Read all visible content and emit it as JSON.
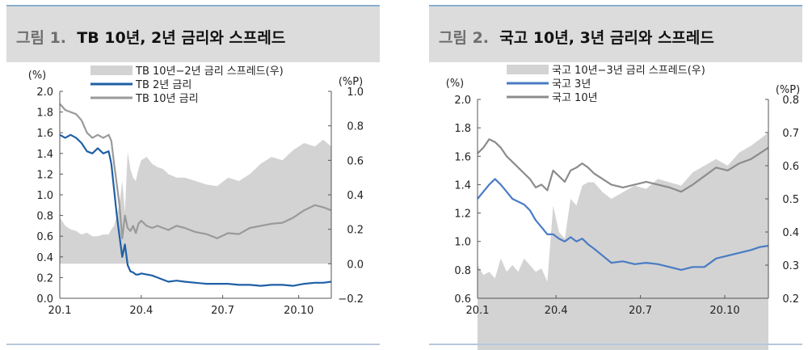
{
  "charts": [
    {
      "fig_label": "그림 1.",
      "title": "TB 10년, 2년 금리와 스프레드",
      "left_unit": "(%)",
      "right_unit": "(%P)",
      "legend": [
        "TB 10년−2년 금리 스프레드(우)",
        "TB 2년 금리",
        "TB 10년 금리"
      ]
    },
    {
      "fig_label": "그림 2.",
      "title": "국고 10년, 3년 금리와 스프레드",
      "left_unit": "(%)",
      "right_unit": "(%P)",
      "legend": [
        "국고 10년−3년 금리 스프레드(우)",
        "국고 3년",
        "국고 10년"
      ]
    }
  ],
  "chart_data": [
    {
      "type": "line",
      "title": "TB 10년, 2년 금리와 스프레드",
      "x_ticks": [
        "20.1",
        "20.4",
        "20.7",
        "20.10"
      ],
      "y_left": {
        "unit": "(%)",
        "min": 0.0,
        "max": 2.0,
        "step": 0.2,
        "ticks": [
          "0.0",
          "0.2",
          "0.4",
          "0.6",
          "0.8",
          "1.0",
          "1.2",
          "1.4",
          "1.6",
          "1.8",
          "2.0"
        ]
      },
      "y_right": {
        "unit": "(%P)",
        "min": -0.2,
        "max": 1.0,
        "step": 0.2,
        "ticks": [
          "−0.2",
          "0.0",
          "0.2",
          "0.4",
          "0.6",
          "0.8",
          "1.0"
        ]
      },
      "x": [
        0,
        0.02,
        0.04,
        0.06,
        0.08,
        0.1,
        0.12,
        0.14,
        0.16,
        0.18,
        0.19,
        0.2,
        0.21,
        0.22,
        0.23,
        0.24,
        0.25,
        0.26,
        0.27,
        0.28,
        0.29,
        0.3,
        0.32,
        0.34,
        0.36,
        0.38,
        0.4,
        0.43,
        0.46,
        0.5,
        0.54,
        0.58,
        0.62,
        0.66,
        0.7,
        0.74,
        0.78,
        0.82,
        0.86,
        0.9,
        0.94,
        0.97,
        1.0
      ],
      "series": [
        {
          "name": "TB 10년−2년 금리 스프레드(우)",
          "kind": "area",
          "axis": "right",
          "color": "#d3d3d3",
          "values": [
            0.27,
            0.22,
            0.2,
            0.19,
            0.17,
            0.18,
            0.16,
            0.16,
            0.17,
            0.17,
            0.2,
            0.22,
            0.28,
            0.35,
            0.48,
            0.3,
            0.65,
            0.55,
            0.5,
            0.48,
            0.55,
            0.6,
            0.62,
            0.58,
            0.56,
            0.55,
            0.52,
            0.5,
            0.5,
            0.48,
            0.46,
            0.45,
            0.5,
            0.48,
            0.52,
            0.58,
            0.62,
            0.6,
            0.66,
            0.7,
            0.68,
            0.72,
            0.68
          ]
        },
        {
          "name": "TB 2년 금리",
          "kind": "line",
          "axis": "left",
          "color": "#1f5fa6",
          "values": [
            1.58,
            1.55,
            1.58,
            1.55,
            1.5,
            1.42,
            1.4,
            1.45,
            1.4,
            1.42,
            1.3,
            1.05,
            0.8,
            0.6,
            0.4,
            0.52,
            0.32,
            0.26,
            0.25,
            0.23,
            0.23,
            0.24,
            0.23,
            0.22,
            0.2,
            0.18,
            0.16,
            0.17,
            0.16,
            0.15,
            0.14,
            0.14,
            0.14,
            0.13,
            0.13,
            0.12,
            0.13,
            0.13,
            0.12,
            0.14,
            0.15,
            0.15,
            0.16
          ]
        },
        {
          "name": "TB 10년 금리",
          "kind": "line",
          "axis": "left",
          "color": "#9a9a9a",
          "values": [
            1.88,
            1.82,
            1.8,
            1.78,
            1.72,
            1.6,
            1.55,
            1.58,
            1.55,
            1.58,
            1.52,
            1.3,
            1.1,
            0.9,
            0.58,
            0.8,
            0.68,
            0.65,
            0.7,
            0.63,
            0.72,
            0.75,
            0.7,
            0.68,
            0.7,
            0.68,
            0.66,
            0.7,
            0.68,
            0.64,
            0.62,
            0.58,
            0.63,
            0.62,
            0.68,
            0.7,
            0.72,
            0.73,
            0.78,
            0.85,
            0.9,
            0.88,
            0.85
          ]
        }
      ]
    },
    {
      "type": "line",
      "title": "국고 10년, 3년 금리와 스프레드",
      "x_ticks": [
        "20.1",
        "20.4",
        "20.7",
        "20.10"
      ],
      "y_left": {
        "unit": "(%)",
        "min": 0.6,
        "max": 2.0,
        "step": 0.2,
        "ticks": [
          "0.6",
          "0.8",
          "1.0",
          "1.2",
          "1.4",
          "1.6",
          "1.8",
          "2.0"
        ]
      },
      "y_right": {
        "unit": "(%P)",
        "min": 0.2,
        "max": 0.8,
        "step": 0.1,
        "ticks": [
          "0.2",
          "0.3",
          "0.4",
          "0.5",
          "0.6",
          "0.7",
          "0.8"
        ]
      },
      "x": [
        0,
        0.02,
        0.04,
        0.06,
        0.08,
        0.1,
        0.12,
        0.14,
        0.16,
        0.18,
        0.2,
        0.22,
        0.24,
        0.26,
        0.28,
        0.3,
        0.32,
        0.34,
        0.36,
        0.38,
        0.4,
        0.43,
        0.46,
        0.5,
        0.54,
        0.58,
        0.62,
        0.66,
        0.7,
        0.74,
        0.78,
        0.82,
        0.86,
        0.9,
        0.94,
        0.97,
        1.0
      ],
      "series": [
        {
          "name": "국고 10년−3년 금리 스프레드(우)",
          "kind": "area",
          "axis": "right",
          "color": "#d3d3d3",
          "values": [
            0.3,
            0.27,
            0.28,
            0.26,
            0.32,
            0.28,
            0.3,
            0.28,
            0.32,
            0.3,
            0.28,
            0.29,
            0.25,
            0.48,
            0.4,
            0.38,
            0.5,
            0.48,
            0.54,
            0.55,
            0.55,
            0.52,
            0.5,
            0.52,
            0.54,
            0.53,
            0.56,
            0.55,
            0.54,
            0.58,
            0.6,
            0.62,
            0.6,
            0.64,
            0.66,
            0.68,
            0.7
          ]
        },
        {
          "name": "국고 3년",
          "kind": "line",
          "axis": "left",
          "color": "#4a7cc4",
          "values": [
            1.3,
            1.35,
            1.4,
            1.44,
            1.4,
            1.35,
            1.3,
            1.28,
            1.26,
            1.22,
            1.15,
            1.1,
            1.05,
            1.05,
            1.02,
            1.0,
            1.03,
            1.0,
            1.02,
            0.98,
            0.95,
            0.9,
            0.85,
            0.86,
            0.84,
            0.85,
            0.84,
            0.82,
            0.8,
            0.82,
            0.82,
            0.88,
            0.9,
            0.92,
            0.94,
            0.96,
            0.97
          ]
        },
        {
          "name": "국고 10년",
          "kind": "line",
          "axis": "left",
          "color": "#8c8c8c",
          "values": [
            1.62,
            1.66,
            1.72,
            1.7,
            1.66,
            1.6,
            1.56,
            1.52,
            1.48,
            1.44,
            1.38,
            1.4,
            1.36,
            1.5,
            1.46,
            1.42,
            1.5,
            1.52,
            1.55,
            1.52,
            1.48,
            1.44,
            1.4,
            1.38,
            1.4,
            1.42,
            1.4,
            1.38,
            1.35,
            1.4,
            1.46,
            1.52,
            1.5,
            1.55,
            1.58,
            1.62,
            1.66
          ]
        }
      ]
    }
  ]
}
